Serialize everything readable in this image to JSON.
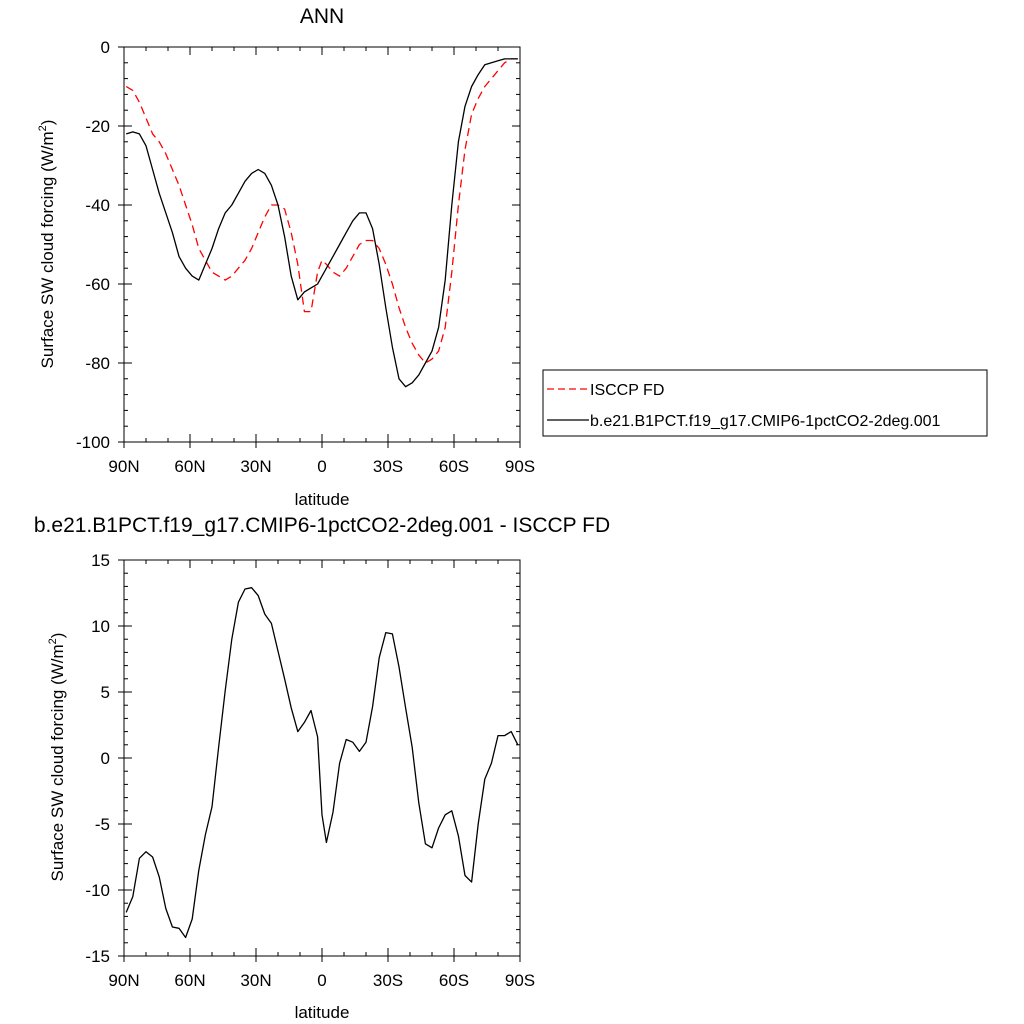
{
  "colors": {
    "model": "#000000",
    "obs": "#ff0000",
    "frame": "#000000"
  },
  "chart_data": [
    {
      "type": "line",
      "title": "ANN",
      "xlabel": "latitude",
      "ylabel": "Surface SW cloud forcing (W/m",
      "ylabel_sup": "2",
      "ylabel_end": ")",
      "xlim": [
        90,
        -90
      ],
      "ylim": [
        -100,
        0
      ],
      "x_ticks": [
        90,
        60,
        30,
        0,
        -30,
        -60,
        -90
      ],
      "x_tick_labels": [
        "90N",
        "60N",
        "30N",
        "0",
        "30S",
        "60S",
        "90S"
      ],
      "y_ticks": [
        0,
        -20,
        -40,
        -60,
        -80,
        -100
      ],
      "y_tick_labels": [
        "0",
        "-20",
        "-40",
        "-60",
        "-80",
        "-100"
      ],
      "grid": false,
      "legend_position": "right",
      "series": [
        {
          "name": "ISCCP FD",
          "color": "#ff0000",
          "dash": true,
          "x": [
            89,
            86,
            83,
            80,
            77,
            74,
            71,
            68,
            65,
            62,
            59,
            56,
            53,
            50,
            47,
            44,
            41,
            38,
            35,
            32,
            29,
            26,
            23,
            20,
            17,
            14,
            11,
            8,
            5,
            2,
            0,
            -2,
            -5,
            -8,
            -11,
            -14,
            -17,
            -20,
            -23,
            -26,
            -29,
            -32,
            -35,
            -38,
            -41,
            -44,
            -47,
            -50,
            -53,
            -56,
            -59,
            -62,
            -65,
            -68,
            -71,
            -74,
            -77,
            -80,
            -83,
            -86,
            -89
          ],
          "values": [
            -10,
            -11,
            -14,
            -18,
            -22,
            -24,
            -27,
            -31,
            -35,
            -40,
            -45,
            -51,
            -54,
            -57,
            -58,
            -59,
            -58,
            -56,
            -54,
            -51,
            -47,
            -43,
            -40,
            -40,
            -41,
            -47,
            -55,
            -67,
            -67,
            -57,
            -54,
            -55,
            -57,
            -58,
            -56,
            -53,
            -50,
            -49,
            -49,
            -51,
            -55,
            -60,
            -66,
            -71,
            -75,
            -78,
            -80,
            -79,
            -77,
            -71,
            -57,
            -40,
            -26,
            -17,
            -13,
            -10,
            -8,
            -6,
            -4,
            -3,
            -3
          ]
        },
        {
          "name": "b.e21.B1PCT.f19_g17.CMIP6-1pctCO2-2deg.001",
          "color": "#000000",
          "dash": false,
          "x": [
            89,
            86,
            83,
            80,
            77,
            74,
            71,
            68,
            65,
            62,
            59,
            56,
            53,
            50,
            47,
            44,
            41,
            38,
            35,
            32,
            29,
            26,
            23,
            20,
            17,
            14,
            11,
            8,
            5,
            2,
            0,
            -2,
            -5,
            -8,
            -11,
            -14,
            -17,
            -20,
            -23,
            -26,
            -29,
            -32,
            -35,
            -38,
            -41,
            -44,
            -47,
            -50,
            -53,
            -56,
            -59,
            -62,
            -65,
            -68,
            -71,
            -74,
            -77,
            -80,
            -83,
            -86,
            -89
          ],
          "values": [
            -22,
            -21.5,
            -22,
            -25,
            -31,
            -37,
            -42,
            -47,
            -53,
            -56,
            -58,
            -59,
            -55,
            -51,
            -46,
            -42,
            -40,
            -37,
            -34,
            -32,
            -31,
            -32,
            -35,
            -40,
            -48,
            -58,
            -64,
            -62,
            -61,
            -60,
            -58,
            -56,
            -53,
            -50,
            -47,
            -44,
            -42,
            -42,
            -46,
            -55,
            -66,
            -76,
            -84,
            -86,
            -85,
            -83,
            -80,
            -77,
            -71,
            -59,
            -40,
            -24,
            -15,
            -10,
            -7,
            -4.5,
            -4,
            -3.5,
            -3,
            -3,
            -3
          ]
        }
      ]
    },
    {
      "type": "line",
      "title": "b.e21.B1PCT.f19_g17.CMIP6-1pctCO2-2deg.001 - ISCCP FD",
      "xlabel": "latitude",
      "ylabel": "Surface SW cloud forcing (W/m",
      "ylabel_sup": "2",
      "ylabel_end": ")",
      "xlim": [
        90,
        -90
      ],
      "ylim": [
        -15,
        15
      ],
      "x_ticks": [
        90,
        60,
        30,
        0,
        -30,
        -60,
        -90
      ],
      "x_tick_labels": [
        "90N",
        "60N",
        "30N",
        "0",
        "30S",
        "60S",
        "90S"
      ],
      "y_ticks": [
        15,
        10,
        5,
        0,
        -5,
        -10,
        -15
      ],
      "y_tick_labels": [
        "15",
        "10",
        "5",
        "0",
        "-5",
        "-10",
        "-15"
      ],
      "grid": false,
      "series": [
        {
          "color": "#000000",
          "dash": false,
          "x": [
            89,
            86,
            83,
            80,
            77,
            74,
            71,
            68,
            65,
            62,
            59,
            56,
            53,
            50,
            47,
            44,
            41,
            38,
            35,
            32,
            29,
            26,
            23,
            20,
            17,
            14,
            11,
            8,
            5,
            2,
            0,
            -2,
            -5,
            -8,
            -11,
            -14,
            -17,
            -20,
            -23,
            -26,
            -29,
            -32,
            -35,
            -38,
            -41,
            -44,
            -47,
            -50,
            -53,
            -56,
            -59,
            -62,
            -65,
            -68,
            -71,
            -74,
            -77,
            -80,
            -83,
            -86,
            -89
          ],
          "values": [
            -11.7,
            -10.5,
            -7.6,
            -7.1,
            -7.5,
            -9.0,
            -11.4,
            -12.8,
            -12.9,
            -13.6,
            -12.2,
            -8.5,
            -5.8,
            -3.7,
            0.8,
            5.1,
            9.0,
            11.8,
            12.8,
            12.9,
            12.3,
            10.9,
            10.2,
            8.1,
            6.0,
            3.8,
            2.0,
            2.7,
            3.6,
            1.6,
            -4.3,
            -6.4,
            -4.1,
            -0.4,
            1.4,
            1.2,
            0.5,
            1.2,
            3.9,
            7.6,
            9.5,
            9.4,
            6.9,
            3.8,
            0.8,
            -3.4,
            -6.5,
            -6.8,
            -5.3,
            -4.3,
            -4.0,
            -5.9,
            -8.9,
            -9.4,
            -5.0,
            -1.6,
            -0.4,
            1.7,
            1.7,
            2.0,
            1.0
          ]
        }
      ]
    }
  ]
}
